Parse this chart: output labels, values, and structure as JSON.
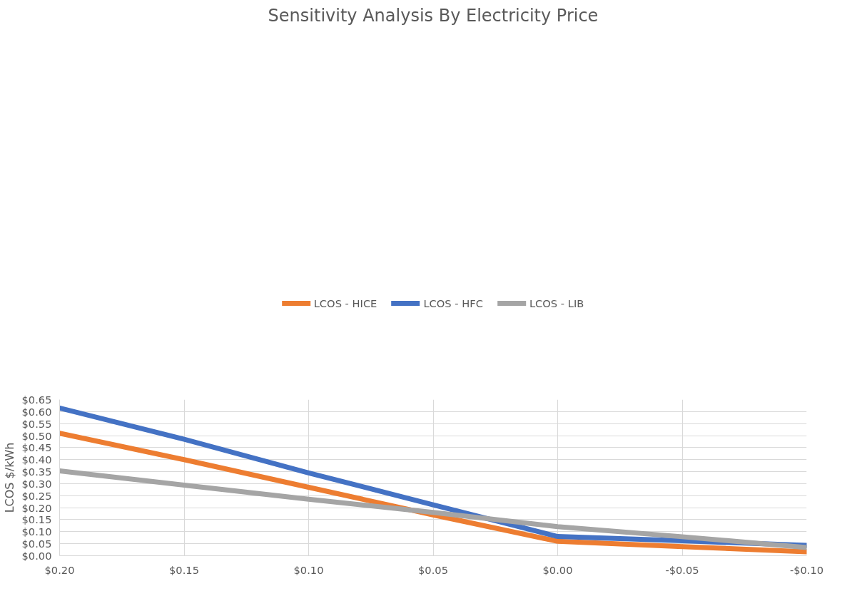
{
  "chart_data": {
    "type": "line",
    "title": "Sensitivity Analysis By Electricity Price",
    "ylabel": "LCOS $/kWh",
    "x": [
      0.2,
      0.15,
      0.1,
      0.05,
      0.0,
      -0.05,
      -0.1
    ],
    "series": [
      {
        "name": "LCOS - HICE",
        "color": "#ed7d31",
        "values": [
          0.51,
          0.4,
          0.285,
          0.17,
          0.06,
          0.038,
          0.016
        ]
      },
      {
        "name": "LCOS - HFC",
        "color": "#4472c4",
        "values": [
          0.615,
          0.485,
          0.345,
          0.212,
          0.08,
          0.062,
          0.043
        ]
      },
      {
        "name": "LCOS - LIB",
        "color": "#a5a5a5",
        "values": [
          0.353,
          0.294,
          0.235,
          0.18,
          0.121,
          0.079,
          0.034
        ]
      }
    ],
    "xlim": [
      0.2,
      -0.1
    ],
    "xticks": [
      {
        "value": 0.2,
        "label": "$0.20"
      },
      {
        "value": 0.15,
        "label": "$0.15"
      },
      {
        "value": 0.1,
        "label": "$0.10"
      },
      {
        "value": 0.05,
        "label": "$0.05"
      },
      {
        "value": 0.0,
        "label": "$0.00"
      },
      {
        "value": -0.05,
        "label": "-$0.05"
      },
      {
        "value": -0.1,
        "label": "-$0.10"
      }
    ],
    "ylim": [
      0,
      0.65
    ],
    "yticks": [
      {
        "value": 0,
        "label": "$0.00"
      },
      {
        "value": 0.05,
        "label": "$0.05"
      },
      {
        "value": 0.1,
        "label": "$0.10"
      },
      {
        "value": 0.15,
        "label": "$0.15"
      },
      {
        "value": 0.2,
        "label": "$0.20"
      },
      {
        "value": 0.25,
        "label": "$0.25"
      },
      {
        "value": 0.3,
        "label": "$0.30"
      },
      {
        "value": 0.35,
        "label": "$0.35"
      },
      {
        "value": 0.4,
        "label": "$0.40"
      },
      {
        "value": 0.45,
        "label": "$0.45"
      },
      {
        "value": 0.5,
        "label": "$0.50"
      },
      {
        "value": 0.55,
        "label": "$0.55"
      },
      {
        "value": 0.6,
        "label": "$0.60"
      },
      {
        "value": 0.65,
        "label": "$0.65"
      }
    ],
    "grid": true,
    "legend": "top",
    "marker": "none",
    "line_style": "solid"
  }
}
